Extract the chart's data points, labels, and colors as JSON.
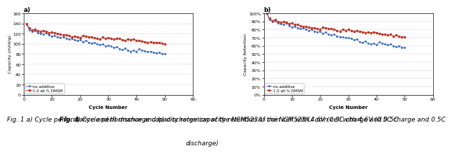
{
  "chart_a": {
    "title": "a)",
    "xlabel": "Cycle Number",
    "ylabel": "Capacity (mAh/g)",
    "xlim": [
      0,
      60
    ],
    "ylim": [
      0,
      160
    ],
    "yticks": [
      0,
      20,
      40,
      60,
      80,
      100,
      120,
      140,
      160
    ],
    "xticks": [
      0,
      10,
      20,
      30,
      40,
      50,
      60
    ],
    "no_additive_x": [
      1,
      2,
      3,
      4,
      5,
      6,
      7,
      8,
      9,
      10,
      11,
      12,
      13,
      14,
      15,
      16,
      17,
      18,
      19,
      20,
      21,
      22,
      23,
      24,
      25,
      26,
      27,
      28,
      29,
      30,
      31,
      32,
      33,
      34,
      35,
      36,
      37,
      38,
      39,
      40,
      41,
      42,
      43,
      44,
      45,
      46,
      47,
      48,
      49,
      50
    ],
    "no_additive_y": [
      138,
      127,
      124,
      126,
      122,
      120,
      119,
      121,
      117,
      115,
      116,
      114,
      112,
      114,
      111,
      109,
      110,
      108,
      106,
      108,
      104,
      106,
      103,
      101,
      102,
      100,
      98,
      99,
      96,
      97,
      95,
      93,
      94,
      90,
      88,
      91,
      87,
      85,
      87,
      85,
      90,
      87,
      86,
      84,
      85,
      83,
      82,
      83,
      81,
      80
    ],
    "dmsm_x": [
      1,
      2,
      3,
      4,
      5,
      6,
      7,
      8,
      9,
      10,
      11,
      12,
      13,
      14,
      15,
      16,
      17,
      18,
      19,
      20,
      21,
      22,
      23,
      24,
      25,
      26,
      27,
      28,
      29,
      30,
      31,
      32,
      33,
      34,
      35,
      36,
      37,
      38,
      39,
      40,
      41,
      42,
      43,
      44,
      45,
      46,
      47,
      48,
      49,
      50
    ],
    "dmsm_y": [
      140,
      131,
      127,
      129,
      126,
      125,
      126,
      124,
      122,
      123,
      121,
      120,
      119,
      117,
      118,
      116,
      114,
      115,
      113,
      112,
      116,
      115,
      113,
      114,
      112,
      111,
      109,
      113,
      111,
      112,
      110,
      109,
      111,
      110,
      108,
      107,
      109,
      108,
      109,
      107,
      106,
      105,
      104,
      103,
      104,
      102,
      103,
      102,
      101,
      100
    ],
    "no_additive_color": "#4472c4",
    "dmsm_color": "#c0392b",
    "legend_no_additive": "no additive",
    "legend_dmsm": "1.0 wt.% DMSM"
  },
  "chart_b": {
    "title": "b)",
    "xlabel": "Cycle Number",
    "ylabel": "Capacity Retention",
    "xlim": [
      0,
      60
    ],
    "ylim": [
      0,
      1.0
    ],
    "ytick_vals": [
      0,
      0.1,
      0.2,
      0.3,
      0.4,
      0.5,
      0.6,
      0.7,
      0.8,
      0.9,
      1.0
    ],
    "ytick_labels": [
      "0%",
      "10%",
      "20%",
      "30%",
      "40%",
      "50%",
      "60%",
      "70%",
      "80%",
      "90%",
      "100%"
    ],
    "xticks": [
      0,
      10,
      20,
      30,
      40,
      50,
      60
    ],
    "no_additive_x": [
      1,
      2,
      3,
      4,
      5,
      6,
      7,
      8,
      9,
      10,
      11,
      12,
      13,
      14,
      15,
      16,
      17,
      18,
      19,
      20,
      21,
      22,
      23,
      24,
      25,
      26,
      27,
      28,
      29,
      30,
      31,
      32,
      33,
      34,
      35,
      36,
      37,
      38,
      39,
      40,
      41,
      42,
      43,
      44,
      45,
      46,
      47,
      48,
      49,
      50
    ],
    "no_additive_y": [
      1.0,
      0.92,
      0.9,
      0.91,
      0.88,
      0.87,
      0.86,
      0.88,
      0.85,
      0.83,
      0.84,
      0.82,
      0.81,
      0.82,
      0.8,
      0.79,
      0.8,
      0.78,
      0.77,
      0.78,
      0.75,
      0.77,
      0.74,
      0.73,
      0.74,
      0.72,
      0.71,
      0.71,
      0.7,
      0.7,
      0.69,
      0.67,
      0.68,
      0.65,
      0.64,
      0.66,
      0.63,
      0.62,
      0.63,
      0.61,
      0.65,
      0.63,
      0.62,
      0.61,
      0.62,
      0.6,
      0.59,
      0.6,
      0.58,
      0.58
    ],
    "dmsm_x": [
      1,
      2,
      3,
      4,
      5,
      6,
      7,
      8,
      9,
      10,
      11,
      12,
      13,
      14,
      15,
      16,
      17,
      18,
      19,
      20,
      21,
      22,
      23,
      24,
      25,
      26,
      27,
      28,
      29,
      30,
      31,
      32,
      33,
      34,
      35,
      36,
      37,
      38,
      39,
      40,
      41,
      42,
      43,
      44,
      45,
      46,
      47,
      48,
      49,
      50
    ],
    "dmsm_y": [
      1.0,
      0.94,
      0.91,
      0.92,
      0.9,
      0.89,
      0.9,
      0.89,
      0.87,
      0.88,
      0.86,
      0.86,
      0.85,
      0.84,
      0.84,
      0.83,
      0.82,
      0.82,
      0.81,
      0.8,
      0.83,
      0.82,
      0.81,
      0.81,
      0.8,
      0.79,
      0.78,
      0.8,
      0.79,
      0.8,
      0.79,
      0.78,
      0.79,
      0.78,
      0.77,
      0.76,
      0.77,
      0.76,
      0.77,
      0.76,
      0.75,
      0.74,
      0.74,
      0.73,
      0.74,
      0.72,
      0.73,
      0.72,
      0.71,
      0.71
    ],
    "no_additive_color": "#4472c4",
    "dmsm_color": "#c0392b",
    "legend_no_additive": "no additive",
    "legend_dmsm": "1.0 wt.% DMSM"
  },
  "caption_bold": "Fig. 1",
  "caption_normal": " a) Cycle performance and b) discharge capacity retention of the NCM523/Li coin cell with 4.6V (0.5C charge and 0.5C",
  "caption2": "discharge)",
  "background_color": "#ffffff",
  "fig_width": 6.73,
  "fig_height": 2.08
}
